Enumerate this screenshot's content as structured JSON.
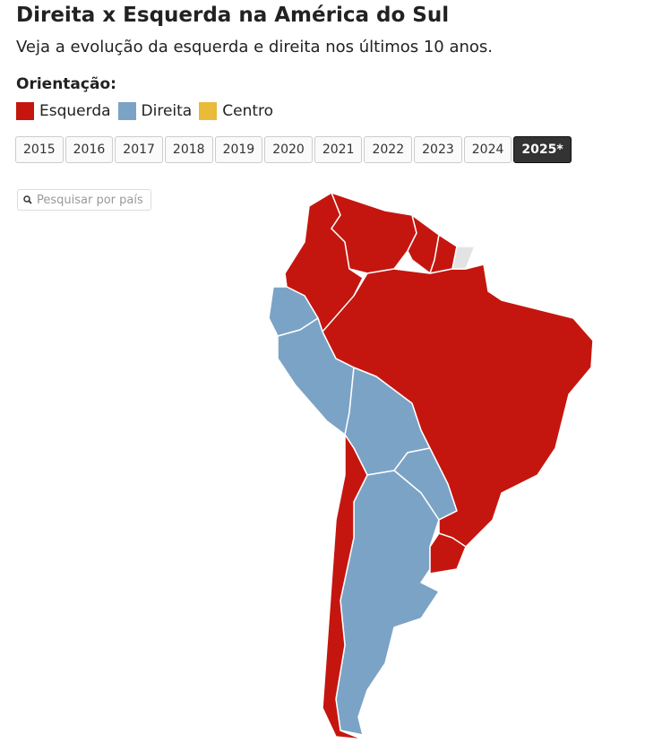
{
  "header": {
    "title": "Direita x Esquerda na América do Sul",
    "subtitle": "Veja a evolução da esquerda e direita nos últimos 10 anos."
  },
  "legend": {
    "title": "Orientação:",
    "items": [
      {
        "name": "Esquerda",
        "color": "#c4160f"
      },
      {
        "name": "Direita",
        "color": "#7ba3c6"
      },
      {
        "name": "Centro",
        "color": "#e8bb3a"
      }
    ]
  },
  "years": {
    "items": [
      "2015",
      "2016",
      "2017",
      "2018",
      "2019",
      "2020",
      "2021",
      "2022",
      "2023",
      "2024",
      "2025*"
    ],
    "selected": 10
  },
  "search": {
    "placeholder": "Pesquisar por país"
  },
  "map": {
    "no_data_color": "#e3e3e3",
    "regions": [
      {
        "legend": 0
      },
      {
        "legend": 0
      },
      {
        "legend": 0
      },
      {
        "legend": 0
      },
      {
        "legend": 1
      },
      {
        "legend": 1
      },
      {
        "legend": 1
      },
      {
        "legend": 1
      },
      {
        "legend": 1
      },
      {
        "legend": 0
      },
      {
        "legend": 0
      },
      {
        "legend": null
      }
    ]
  }
}
